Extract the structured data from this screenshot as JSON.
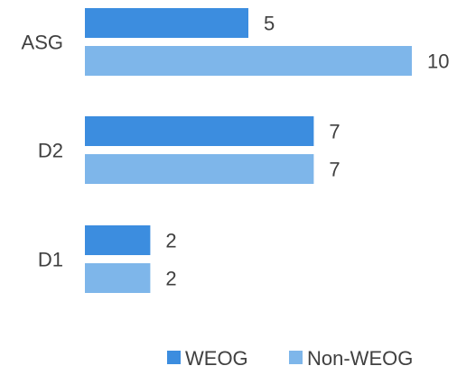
{
  "chart_data": {
    "type": "bar",
    "orientation": "horizontal",
    "categories": [
      "ASG",
      "D2",
      "D1"
    ],
    "series": [
      {
        "name": "WEOG",
        "values": [
          5,
          7,
          2
        ],
        "color": "#3C8DDF"
      },
      {
        "name": "Non-WEOG",
        "values": [
          10,
          7,
          2
        ],
        "color": "#7EB6EA"
      }
    ],
    "xlim": [
      0,
      10
    ],
    "grid": false,
    "legend_position": "bottom-right",
    "data_labels": true
  }
}
